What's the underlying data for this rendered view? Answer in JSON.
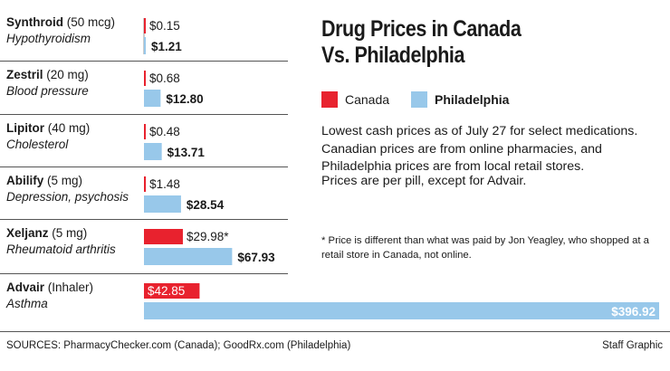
{
  "title_line1": "Drug Prices in Canada",
  "title_line2": "Vs. Philadelphia",
  "legend": {
    "canada_label": "Canada",
    "philadelphia_label": "Philadelphia",
    "canada_color": "#e8222e",
    "philadelphia_color": "#98c8ea"
  },
  "description": "Lowest cash prices as of July 27 for select medications. Canadian prices are from online pharmacies, and Philadelphia prices are from local retail stores.",
  "note": "Prices are per pill, except for Advair.",
  "footnote": "* Price is different than what was paid by Jon Yeagley, who shopped at a retail store in Canada, not online.",
  "sources": "SOURCES: PharmacyChecker.com (Canada); GoodRx.com (Philadelphia)",
  "credit": "Staff Graphic",
  "drugs": [
    {
      "name": "Synthroid",
      "dose": " (50 mcg)",
      "condition": "Hypothyroidism"
    },
    {
      "name": "Zestril",
      "dose": " (20 mg)",
      "condition": "Blood pressure"
    },
    {
      "name": "Lipitor",
      "dose": " (40 mg)",
      "condition": "Cholesterol"
    },
    {
      "name": "Abilify",
      "dose": " (5 mg)",
      "condition": "Depression, psychosis"
    },
    {
      "name": "Xeljanz",
      "dose": " (5 mg)",
      "condition": "Rheumatoid arthritis"
    },
    {
      "name": "Advair",
      "dose": " (Inhaler)",
      "condition": "Asthma"
    }
  ],
  "chart_data": {
    "type": "bar",
    "orientation": "horizontal",
    "title": "Drug Prices in Canada Vs. Philadelphia",
    "categories": [
      "Synthroid",
      "Zestril",
      "Lipitor",
      "Abilify",
      "Xeljanz",
      "Advair"
    ],
    "series": [
      {
        "name": "Canada",
        "values": [
          0.15,
          0.68,
          0.48,
          1.48,
          29.98,
          42.85
        ],
        "labels": [
          "$0.15",
          "$0.68",
          "$0.48",
          "$1.48",
          "$29.98*",
          "$42.85"
        ]
      },
      {
        "name": "Philadelphia",
        "values": [
          1.21,
          12.8,
          13.71,
          28.54,
          67.93,
          396.92
        ],
        "labels": [
          "$1.21",
          "$12.80",
          "$13.71",
          "$28.54",
          "$67.93",
          "$396.92"
        ]
      }
    ],
    "xlim": [
      0,
      396.92
    ],
    "grid": false,
    "legend": "top-right"
  }
}
